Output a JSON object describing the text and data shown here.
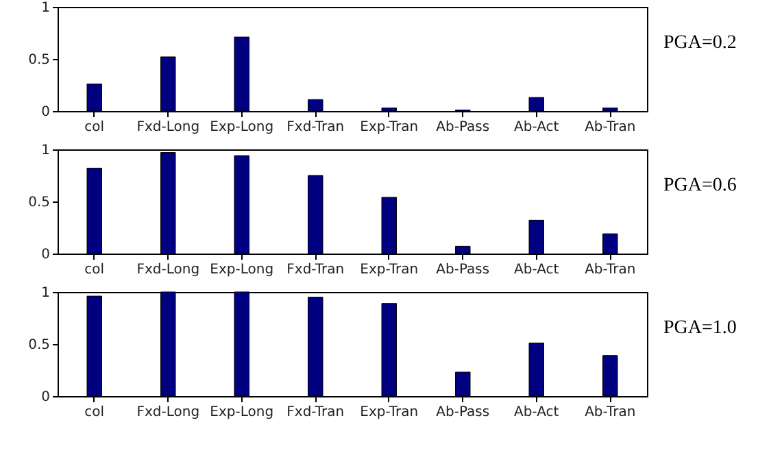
{
  "chart_data": [
    {
      "type": "bar",
      "annotations": [
        "PGA=0.2"
      ],
      "categories": [
        "col",
        "Fxd-Long",
        "Exp-Long",
        "Fxd-Tran",
        "Exp-Tran",
        "Ab-Pass",
        "Ab-Act",
        "Ab-Tran"
      ],
      "values": [
        0.26,
        0.52,
        0.71,
        0.11,
        0.03,
        0.01,
        0.13,
        0.03
      ],
      "color": "#000080",
      "ylim": [
        0,
        1
      ],
      "yticks": [
        0,
        0.5,
        1
      ],
      "grid": false
    },
    {
      "type": "bar",
      "annotations": [
        "PGA=0.6"
      ],
      "categories": [
        "col",
        "Fxd-Long",
        "Exp-Long",
        "Fxd-Tran",
        "Exp-Tran",
        "Ab-Pass",
        "Ab-Act",
        "Ab-Tran"
      ],
      "values": [
        0.82,
        0.97,
        0.94,
        0.75,
        0.54,
        0.07,
        0.32,
        0.19
      ],
      "color": "#000080",
      "ylim": [
        0,
        1
      ],
      "yticks": [
        0,
        0.5,
        1
      ],
      "grid": false
    },
    {
      "type": "bar",
      "annotations": [
        "PGA=1.0"
      ],
      "categories": [
        "col",
        "Fxd-Long",
        "Exp-Long",
        "Fxd-Tran",
        "Exp-Tran",
        "Ab-Pass",
        "Ab-Act",
        "Ab-Tran"
      ],
      "values": [
        0.96,
        1.0,
        1.0,
        0.95,
        0.89,
        0.23,
        0.51,
        0.39
      ],
      "color": "#000080",
      "ylim": [
        0,
        1
      ],
      "yticks": [
        0,
        0.5,
        1
      ],
      "grid": false
    }
  ]
}
